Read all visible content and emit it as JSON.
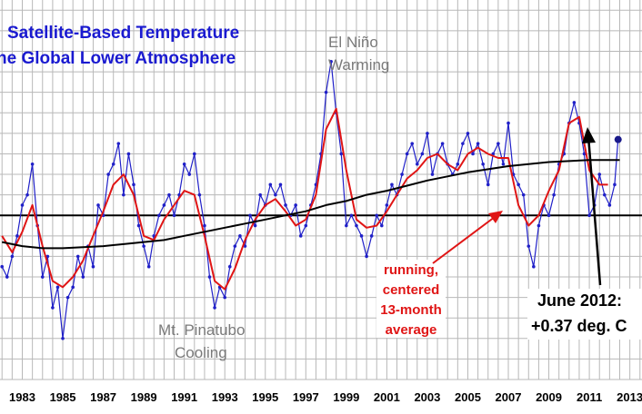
{
  "chart_data": {
    "type": "line",
    "title_lines": [
      "Satellite-Based Temperature",
      "he Global Lower Atmosphere"
    ],
    "x_tick_labels": [
      "1983",
      "1985",
      "1987",
      "1989",
      "1991",
      "1993",
      "1995",
      "1997",
      "1999",
      "2001",
      "2003",
      "2005",
      "2007",
      "2009",
      "2011",
      "2013"
    ],
    "xlim": [
      1981.9,
      2013.6
    ],
    "ylim": [
      -0.8,
      1.05
    ],
    "grid": true,
    "series": [
      {
        "key": "monthly",
        "color": "#2020c8",
        "x": [
          1982.0,
          1982.25,
          1982.5,
          1982.75,
          1983.0,
          1983.25,
          1983.5,
          1983.75,
          1984.0,
          1984.25,
          1984.5,
          1984.75,
          1985.0,
          1985.25,
          1985.5,
          1985.75,
          1986.0,
          1986.25,
          1986.5,
          1986.75,
          1987.0,
          1987.25,
          1987.5,
          1987.75,
          1988.0,
          1988.25,
          1988.5,
          1988.75,
          1989.0,
          1989.25,
          1989.5,
          1989.75,
          1990.0,
          1990.25,
          1990.5,
          1990.75,
          1991.0,
          1991.25,
          1991.5,
          1991.75,
          1992.0,
          1992.25,
          1992.5,
          1992.75,
          1993.0,
          1993.25,
          1993.5,
          1993.75,
          1994.0,
          1994.25,
          1994.5,
          1994.75,
          1995.0,
          1995.25,
          1995.5,
          1995.75,
          1996.0,
          1996.25,
          1996.5,
          1996.75,
          1997.0,
          1997.25,
          1997.5,
          1997.75,
          1998.0,
          1998.25,
          1998.5,
          1998.75,
          1999.0,
          1999.25,
          1999.5,
          1999.75,
          2000.0,
          2000.25,
          2000.5,
          2000.75,
          2001.0,
          2001.25,
          2001.5,
          2001.75,
          2002.0,
          2002.25,
          2002.5,
          2002.75,
          2003.0,
          2003.25,
          2003.5,
          2003.75,
          2004.0,
          2004.25,
          2004.5,
          2004.75,
          2005.0,
          2005.25,
          2005.5,
          2005.75,
          2006.0,
          2006.25,
          2006.5,
          2006.75,
          2007.0,
          2007.25,
          2007.5,
          2007.75,
          2008.0,
          2008.25,
          2008.5,
          2008.75,
          2009.0,
          2009.25,
          2009.5,
          2009.75,
          2010.0,
          2010.25,
          2010.5,
          2010.75,
          2011.0,
          2011.25,
          2011.5,
          2011.75,
          2012.0,
          2012.25,
          2012.42
        ],
        "y": [
          -0.25,
          -0.3,
          -0.2,
          -0.1,
          0.05,
          0.1,
          0.25,
          -0.05,
          -0.3,
          -0.2,
          -0.45,
          -0.35,
          -0.6,
          -0.4,
          -0.35,
          -0.2,
          -0.3,
          -0.15,
          -0.25,
          0.05,
          0.0,
          0.2,
          0.25,
          0.35,
          0.1,
          0.3,
          0.15,
          -0.05,
          -0.15,
          -0.25,
          -0.1,
          0.0,
          0.05,
          0.1,
          0.0,
          0.1,
          0.25,
          0.2,
          0.3,
          0.1,
          -0.05,
          -0.3,
          -0.45,
          -0.35,
          -0.4,
          -0.25,
          -0.15,
          -0.1,
          -0.15,
          0.0,
          -0.05,
          0.1,
          0.05,
          0.15,
          0.1,
          0.15,
          0.05,
          0.0,
          0.05,
          -0.1,
          -0.05,
          0.05,
          0.15,
          0.3,
          0.6,
          0.75,
          0.5,
          0.3,
          -0.05,
          0.0,
          -0.05,
          -0.1,
          -0.2,
          -0.1,
          0.0,
          -0.05,
          0.05,
          0.15,
          0.1,
          0.2,
          0.3,
          0.35,
          0.25,
          0.3,
          0.4,
          0.2,
          0.3,
          0.35,
          0.25,
          0.2,
          0.25,
          0.35,
          0.4,
          0.3,
          0.35,
          0.25,
          0.15,
          0.3,
          0.35,
          0.25,
          0.45,
          0.2,
          0.15,
          0.1,
          -0.15,
          -0.25,
          -0.05,
          0.05,
          0.0,
          0.1,
          0.25,
          0.3,
          0.45,
          0.55,
          0.45,
          0.3,
          0.0,
          0.05,
          0.2,
          0.1,
          0.05,
          0.15,
          0.37
        ]
      },
      {
        "key": "running_13_month",
        "color": "#e01515",
        "x": [
          1982.0,
          1982.5,
          1983.0,
          1983.5,
          1984.0,
          1984.5,
          1985.0,
          1985.5,
          1986.0,
          1986.5,
          1987.0,
          1987.5,
          1988.0,
          1988.5,
          1989.0,
          1989.5,
          1990.0,
          1990.5,
          1991.0,
          1991.5,
          1992.0,
          1992.5,
          1993.0,
          1993.5,
          1994.0,
          1994.5,
          1995.0,
          1995.5,
          1996.0,
          1996.5,
          1997.0,
          1997.5,
          1998.0,
          1998.5,
          1999.0,
          1999.5,
          2000.0,
          2000.5,
          2001.0,
          2001.5,
          2002.0,
          2002.5,
          2003.0,
          2003.5,
          2004.0,
          2004.5,
          2005.0,
          2005.5,
          2006.0,
          2006.5,
          2007.0,
          2007.5,
          2008.0,
          2008.5,
          2009.0,
          2009.5,
          2010.0,
          2010.5,
          2011.0,
          2011.5,
          2011.92
        ],
        "y": [
          -0.1,
          -0.18,
          -0.08,
          0.05,
          -0.15,
          -0.32,
          -0.35,
          -0.3,
          -0.22,
          -0.1,
          0.02,
          0.15,
          0.2,
          0.1,
          -0.1,
          -0.12,
          -0.02,
          0.05,
          0.12,
          0.1,
          -0.1,
          -0.32,
          -0.36,
          -0.26,
          -0.12,
          -0.02,
          0.05,
          0.08,
          0.02,
          -0.05,
          -0.02,
          0.1,
          0.42,
          0.52,
          0.22,
          -0.02,
          -0.06,
          -0.05,
          0.02,
          0.1,
          0.18,
          0.22,
          0.28,
          0.3,
          0.25,
          0.22,
          0.3,
          0.33,
          0.3,
          0.28,
          0.28,
          0.05,
          -0.05,
          0.0,
          0.12,
          0.22,
          0.45,
          0.48,
          0.22,
          0.15,
          0.15
        ]
      },
      {
        "key": "trend",
        "color": "#000000",
        "x": [
          1982.0,
          1983.0,
          1984.0,
          1985.0,
          1986.0,
          1987.0,
          1988.0,
          1989.0,
          1990.0,
          1991.0,
          1992.0,
          1993.0,
          1994.0,
          1995.0,
          1996.0,
          1997.0,
          1998.0,
          1999.0,
          2000.0,
          2001.0,
          2002.0,
          2003.0,
          2004.0,
          2005.0,
          2006.0,
          2007.0,
          2008.0,
          2009.0,
          2010.0,
          2011.0,
          2012.0,
          2012.5
        ],
        "y": [
          -0.13,
          -0.15,
          -0.16,
          -0.16,
          -0.155,
          -0.15,
          -0.14,
          -0.13,
          -0.12,
          -0.1,
          -0.08,
          -0.06,
          -0.04,
          -0.02,
          0.0,
          0.02,
          0.05,
          0.07,
          0.1,
          0.12,
          0.145,
          0.17,
          0.19,
          0.21,
          0.225,
          0.24,
          0.25,
          0.26,
          0.265,
          0.27,
          0.27,
          0.27
        ]
      }
    ],
    "zero_line": 0.0,
    "annotations": {
      "el_nino": [
        "El Niño",
        "Warming"
      ],
      "pinatubo": [
        "Mt. Pinatubo",
        "Cooling"
      ],
      "running_avg": [
        "running,",
        "centered",
        "13-month",
        "average"
      ],
      "june_2012": [
        "June 2012:",
        "+0.37 deg. C"
      ]
    },
    "highlight_point": {
      "x": 2012.42,
      "y": 0.37
    }
  }
}
